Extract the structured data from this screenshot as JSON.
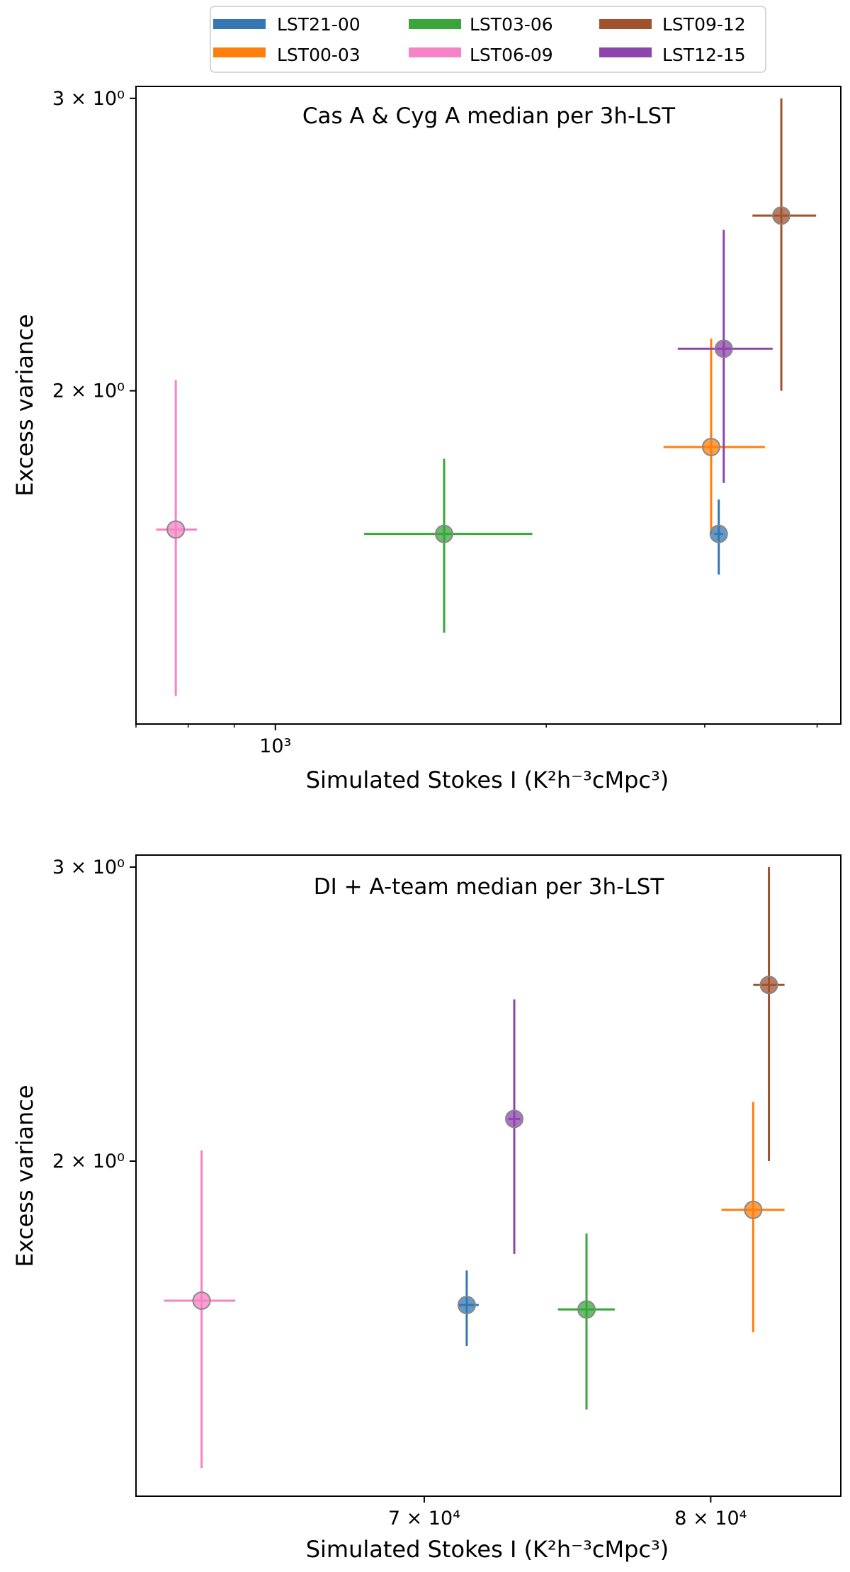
{
  "legend": {
    "entries": [
      {
        "label": "LST21-00",
        "color": "#3477b2"
      },
      {
        "label": "LST03-06",
        "color": "#3aa63a"
      },
      {
        "label": "LST09-12",
        "color": "#a0522d"
      },
      {
        "label": "LST00-03",
        "color": "#ff7f0e"
      },
      {
        "label": "LST06-09",
        "color": "#f583c5"
      },
      {
        "label": "LST12-15",
        "color": "#8e44ad"
      }
    ]
  },
  "chart_data": [
    {
      "type": "scatter",
      "title": "Cas A & Cyg A median per 3h-LST",
      "xlabel": "Simulated Stokes I (K²h⁻³cMpc³)",
      "ylabel": "Excess variance",
      "xscale": "log",
      "yscale": "log",
      "xlim": [
        700,
        4250
      ],
      "ylim": [
        1.26,
        3.05
      ],
      "xticks": [
        {
          "value": 1000,
          "label": "10³"
        }
      ],
      "yticks": [
        {
          "value": 2,
          "label": "2 × 10⁰"
        },
        {
          "value": 3,
          "label": "3 × 10⁰"
        }
      ],
      "series": [
        {
          "name": "LST06-09",
          "x": 775,
          "xerr": [
            737,
            818
          ],
          "y": 1.65,
          "yerr": [
            1.31,
            2.03
          ]
        },
        {
          "name": "LST03-06",
          "x": 1540,
          "xerr": [
            1255,
            1930
          ],
          "y": 1.64,
          "yerr": [
            1.43,
            1.82
          ]
        },
        {
          "name": "LST00-03",
          "x": 3050,
          "xerr": [
            2700,
            3500
          ],
          "y": 1.85,
          "yerr": [
            1.64,
            2.15
          ]
        },
        {
          "name": "LST21-00",
          "x": 3110,
          "xerr": [
            3075,
            3145
          ],
          "y": 1.64,
          "yerr": [
            1.55,
            1.72
          ]
        },
        {
          "name": "LST12-15",
          "x": 3150,
          "xerr": [
            2800,
            3570
          ],
          "y": 2.12,
          "yerr": [
            1.76,
            2.5
          ]
        },
        {
          "name": "LST09-12",
          "x": 3650,
          "xerr": [
            3390,
            3990
          ],
          "y": 2.55,
          "yerr": [
            2.0,
            3.0
          ]
        }
      ]
    },
    {
      "type": "scatter",
      "title": "DI + A-team median per 3h-LST",
      "xlabel": "Simulated Stokes I (K²h⁻³cMpc³)",
      "ylabel": "Excess variance",
      "xscale": "log",
      "yscale": "log",
      "xlim": [
        61200,
        85000
      ],
      "ylim": [
        1.26,
        3.05
      ],
      "xticks": [
        {
          "value": 70000,
          "label": "7 × 10⁴"
        },
        {
          "value": 80000,
          "label": "8 × 10⁴"
        }
      ],
      "yticks": [
        {
          "value": 2,
          "label": "2 × 10⁰"
        },
        {
          "value": 3,
          "label": "3 × 10⁰"
        }
      ],
      "series": [
        {
          "name": "LST06-09",
          "x": 63100,
          "xerr": [
            62000,
            64100
          ],
          "y": 1.65,
          "yerr": [
            1.31,
            2.03
          ]
        },
        {
          "name": "LST21-00",
          "x": 71400,
          "xerr": [
            71100,
            71800
          ],
          "y": 1.64,
          "yerr": [
            1.55,
            1.72
          ]
        },
        {
          "name": "LST12-15",
          "x": 73000,
          "xerr": [
            72800,
            73200
          ],
          "y": 2.12,
          "yerr": [
            1.76,
            2.5
          ]
        },
        {
          "name": "LST03-06",
          "x": 75500,
          "xerr": [
            74500,
            76500
          ],
          "y": 1.63,
          "yerr": [
            1.42,
            1.81
          ]
        },
        {
          "name": "LST00-03",
          "x": 81600,
          "xerr": [
            80400,
            82800
          ],
          "y": 1.87,
          "yerr": [
            1.58,
            2.17
          ]
        },
        {
          "name": "LST09-12",
          "x": 82200,
          "xerr": [
            81600,
            82800
          ],
          "y": 2.55,
          "yerr": [
            2.0,
            3.0
          ]
        }
      ]
    }
  ]
}
